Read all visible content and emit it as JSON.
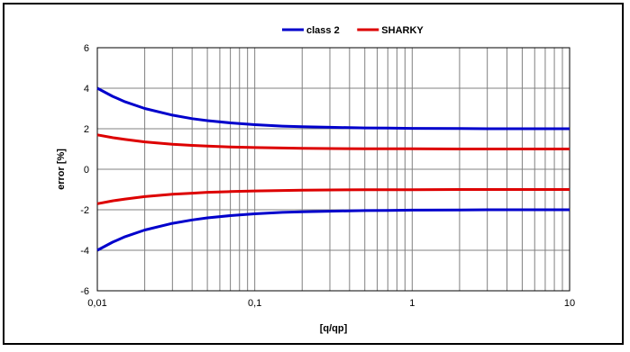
{
  "chart_data": {
    "type": "line",
    "xlabel": "[q/qp]",
    "ylabel": "error [%]",
    "xscale": "log",
    "xlim": [
      0.01,
      10
    ],
    "ylim": [
      -6,
      6
    ],
    "x_ticks": [
      0.01,
      0.1,
      1,
      10
    ],
    "x_tick_labels": [
      "0,01",
      "0,1",
      "1",
      "10"
    ],
    "y_ticks": [
      -6,
      -4,
      -2,
      0,
      2,
      4,
      6
    ],
    "y_tick_labels": [
      "-6",
      "-4",
      "-2",
      "0",
      "2",
      "4",
      "6"
    ],
    "grid": true,
    "legend": {
      "position": "top-center",
      "entries": [
        "class 2",
        "SHARKY"
      ]
    },
    "x": [
      0.01,
      0.0125,
      0.015,
      0.02,
      0.03,
      0.04,
      0.05,
      0.07,
      0.1,
      0.15,
      0.2,
      0.3,
      0.5,
      0.7,
      1,
      2,
      3,
      5,
      7,
      10
    ],
    "series": [
      {
        "name": "class 2",
        "color": "#0000cc",
        "legend": true,
        "values": [
          4.0,
          3.6,
          3.33,
          3.0,
          2.67,
          2.5,
          2.4,
          2.29,
          2.2,
          2.13,
          2.1,
          2.07,
          2.04,
          2.03,
          2.02,
          2.01,
          2.0,
          2.0,
          2.0,
          2.0
        ]
      },
      {
        "name": "class 2",
        "color": "#0000cc",
        "legend": false,
        "values": [
          -4.0,
          -3.6,
          -3.33,
          -3.0,
          -2.67,
          -2.5,
          -2.4,
          -2.29,
          -2.2,
          -2.13,
          -2.1,
          -2.07,
          -2.04,
          -2.03,
          -2.02,
          -2.01,
          -2.0,
          -2.0,
          -2.0,
          -2.0
        ]
      },
      {
        "name": "SHARKY",
        "color": "#dd0000",
        "legend": true,
        "values": [
          1.7,
          1.56,
          1.47,
          1.35,
          1.23,
          1.18,
          1.14,
          1.1,
          1.07,
          1.05,
          1.035,
          1.023,
          1.014,
          1.01,
          1.007,
          1.0,
          1.0,
          1.0,
          1.0,
          1.0
        ]
      },
      {
        "name": "SHARKY",
        "color": "#dd0000",
        "legend": false,
        "values": [
          -1.7,
          -1.56,
          -1.47,
          -1.35,
          -1.23,
          -1.18,
          -1.14,
          -1.1,
          -1.07,
          -1.05,
          -1.035,
          -1.023,
          -1.014,
          -1.01,
          -1.007,
          -1.0,
          -1.0,
          -1.0,
          -1.0,
          -1.0
        ]
      }
    ]
  }
}
